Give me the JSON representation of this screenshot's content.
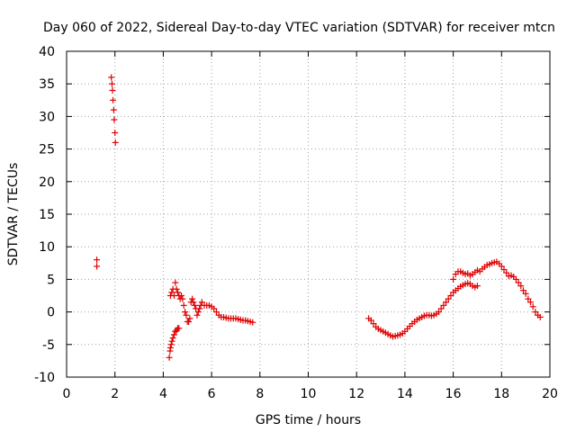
{
  "chart_data": {
    "type": "scatter",
    "title": "Day 060 of 2022, Sidereal Day-to-day VTEC variation (SDTVAR) for receiver mtcn",
    "xlabel": "GPS time / hours",
    "ylabel": "SDTVAR / TECUs",
    "xlim": [
      0,
      20
    ],
    "ylim": [
      -10,
      40
    ],
    "xticks": [
      0,
      2,
      4,
      6,
      8,
      10,
      12,
      14,
      16,
      18,
      20
    ],
    "yticks": [
      -10,
      -5,
      0,
      5,
      10,
      15,
      20,
      25,
      30,
      35,
      40
    ],
    "grid": true,
    "marker": "plus",
    "color": "#e00000",
    "segments": [
      {
        "x": [
          1.25,
          1.25
        ],
        "y": [
          7,
          8
        ]
      },
      {
        "x": [
          1.85,
          1.88,
          1.9,
          1.92,
          1.95,
          1.97,
          2.0,
          2.02
        ],
        "y": [
          36,
          35,
          34,
          32.5,
          31,
          29.5,
          27.5,
          26
        ]
      },
      {
        "x": [
          4.25,
          4.28,
          4.3,
          4.33,
          4.36,
          4.4,
          4.45,
          4.5,
          4.55,
          4.6,
          4.65
        ],
        "y": [
          -7,
          -6,
          -5.5,
          -5,
          -4.5,
          -4,
          -3.5,
          -3,
          -2.8,
          -2.5,
          -2.5
        ]
      },
      {
        "x": [
          4.3,
          4.35,
          4.4,
          4.45,
          4.5,
          4.55,
          4.6,
          4.65,
          4.7,
          4.75,
          4.8,
          4.85,
          4.9,
          4.95,
          5.0,
          5.05,
          5.1,
          5.15,
          5.2,
          5.25,
          5.3,
          5.35,
          5.4,
          5.45,
          5.5,
          5.55,
          5.6,
          5.7,
          5.8,
          5.9,
          6.0,
          6.1,
          6.2,
          6.3,
          6.4,
          6.5,
          6.6,
          6.7,
          6.8,
          6.9,
          7.0,
          7.1,
          7.2,
          7.3,
          7.4,
          7.5,
          7.6,
          7.7
        ],
        "y": [
          2.5,
          3,
          3.5,
          2.5,
          4.5,
          3.5,
          3,
          2.5,
          2,
          2.5,
          2,
          1,
          0,
          -0.5,
          -1.5,
          -1.5,
          -1,
          1.5,
          2,
          1.5,
          1,
          0.5,
          -0.5,
          0,
          0.5,
          1,
          1.5,
          1,
          1,
          1,
          0.8,
          0.5,
          0,
          -0.5,
          -0.8,
          -0.8,
          -0.9,
          -1,
          -1,
          -1,
          -1,
          -1.1,
          -1.2,
          -1.3,
          -1.3,
          -1.4,
          -1.5,
          -1.6
        ]
      },
      {
        "x": [
          12.5,
          12.6,
          12.7,
          12.8,
          12.9,
          13.0,
          13.1,
          13.2,
          13.3,
          13.4,
          13.5,
          13.6,
          13.7,
          13.8,
          13.9,
          14.0,
          14.1,
          14.2,
          14.3,
          14.4,
          14.5,
          14.6,
          14.7,
          14.8,
          14.9,
          15.0,
          15.1,
          15.2,
          15.3,
          15.4,
          15.5,
          15.6,
          15.7,
          15.8,
          15.9,
          16.0,
          16.1,
          16.2,
          16.3,
          16.4,
          16.5,
          16.6,
          16.7,
          16.8,
          16.9,
          17.0
        ],
        "y": [
          -1,
          -1.3,
          -1.8,
          -2.3,
          -2.6,
          -2.8,
          -3,
          -3.2,
          -3.4,
          -3.6,
          -3.8,
          -3.7,
          -3.6,
          -3.5,
          -3.3,
          -3,
          -2.6,
          -2.2,
          -1.8,
          -1.5,
          -1.2,
          -1,
          -0.8,
          -0.6,
          -0.5,
          -0.5,
          -0.6,
          -0.5,
          -0.3,
          0,
          0.5,
          1,
          1.5,
          2,
          2.5,
          3,
          3.3,
          3.6,
          3.9,
          4.1,
          4.3,
          4.4,
          4.3,
          4,
          3.8,
          4
        ]
      },
      {
        "x": [
          16.0,
          16.1,
          16.2,
          16.3,
          16.4,
          16.5,
          16.6,
          16.7,
          16.8,
          16.9,
          17.0,
          17.1,
          17.2,
          17.3,
          17.4,
          17.5,
          17.6,
          17.7,
          17.8,
          17.9,
          18.0,
          18.1,
          18.2,
          18.3,
          18.4,
          18.5,
          18.6,
          18.7,
          18.8,
          18.9,
          19.0,
          19.1,
          19.2,
          19.3,
          19.4,
          19.5,
          19.6
        ],
        "y": [
          5,
          5.8,
          6.2,
          6.2,
          6,
          5.8,
          5.9,
          5.6,
          5.8,
          6.1,
          6.4,
          6.2,
          6.6,
          6.9,
          7.2,
          7.3,
          7.5,
          7.6,
          7.7,
          7.4,
          7,
          6.5,
          6,
          5.5,
          5.6,
          5.4,
          5,
          4.5,
          4,
          3.3,
          2.8,
          2,
          1.5,
          0.8,
          0,
          -0.5,
          -0.8
        ]
      }
    ]
  }
}
